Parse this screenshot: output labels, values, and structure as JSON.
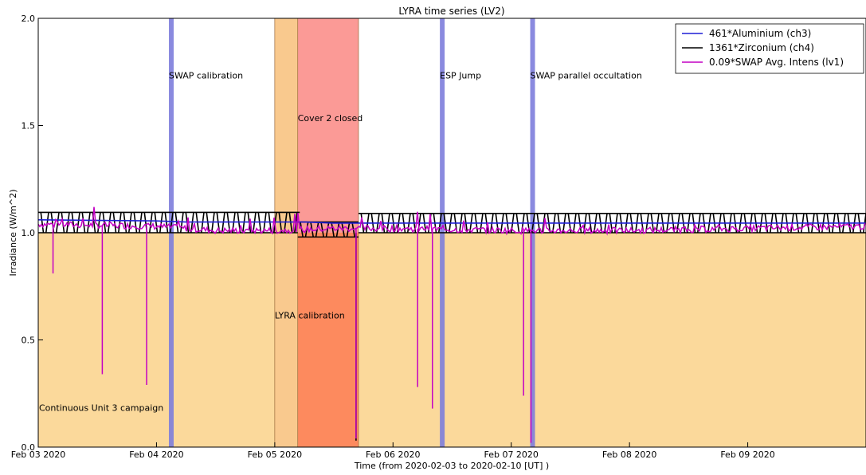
{
  "chart_data": {
    "type": "line",
    "title": "LYRA time series (LV2)",
    "xlabel": "Time (from 2020-02-03 to 2020-02-10 [UT] )",
    "ylabel": "Irradiance (W/m^2)",
    "xlim": [
      "2020-02-03",
      "2020-02-10"
    ],
    "ylim": [
      0.0,
      2.0
    ],
    "x_ticks": [
      "Feb 03 2020",
      "Feb 04 2020",
      "Feb 05 2020",
      "Feb 06 2020",
      "Feb 07 2020",
      "Feb 08 2020",
      "Feb 09 2020"
    ],
    "y_ticks": [
      "0.0",
      "0.5",
      "1.0",
      "1.5",
      "2.0"
    ],
    "grid": false,
    "legend_position": "top-right",
    "series": [
      {
        "name": "461*Aluminium (ch3)",
        "color": "#1f1fd6",
        "x": [
          "2020-02-03 00:00",
          "2020-02-04 00:00",
          "2020-02-04 06:00",
          "2020-02-05 00:00",
          "2020-02-05 06:00",
          "2020-02-05 12:00",
          "2020-02-06 00:00",
          "2020-02-07 00:00",
          "2020-02-08 00:00",
          "2020-02-09 00:00",
          "2020-02-10 00:00"
        ],
        "y": [
          1.06,
          1.055,
          1.05,
          1.05,
          1.05,
          1.045,
          1.045,
          1.045,
          1.045,
          1.045,
          1.045
        ]
      },
      {
        "name": "1361*Zirconium (ch4)",
        "color": "#000000",
        "envelope_x": [
          [
            "2020-02-03 00:00",
            "2020-02-05 04:40"
          ],
          [
            "2020-02-05 04:40",
            "2020-02-05 17:00"
          ],
          [
            "2020-02-05 17:00",
            "2020-02-10 00:00"
          ]
        ],
        "envelope_y_high": [
          1.095,
          1.05,
          1.09
        ],
        "envelope_y_low": [
          1.0,
          0.98,
          1.0
        ],
        "dropout": {
          "x": "2020-02-05 16:30",
          "y": 0.03
        }
      },
      {
        "name": "0.09*SWAP Avg. Intens (lv1)",
        "color": "#c400c4",
        "baseline_x": [
          "2020-02-03 00:00",
          "2020-02-04 00:00",
          "2020-02-04 12:00",
          "2020-02-05 00:00",
          "2020-02-05 12:00",
          "2020-02-06 00:00",
          "2020-02-07 00:00",
          "2020-02-08 00:00",
          "2020-02-09 00:00",
          "2020-02-10 00:00"
        ],
        "baseline_y": [
          1.04,
          1.03,
          1.01,
          1.01,
          1.02,
          1.02,
          1.01,
          1.01,
          1.02,
          1.03
        ],
        "dips": [
          {
            "x": "2020-02-03 03:00",
            "y": 0.81
          },
          {
            "x": "2020-02-03 13:00",
            "y": 0.34
          },
          {
            "x": "2020-02-03 22:00",
            "y": 0.29
          },
          {
            "x": "2020-02-05 16:30",
            "y": 0.04
          },
          {
            "x": "2020-02-06 05:00",
            "y": 0.28
          },
          {
            "x": "2020-02-06 08:00",
            "y": 0.18
          },
          {
            "x": "2020-02-07 02:30",
            "y": 0.24
          },
          {
            "x": "2020-02-07 04:00",
            "y": 0.02
          }
        ]
      }
    ],
    "shaded_regions": [
      {
        "label": "Continuous Unit 3 campaign",
        "x": [
          "2020-02-03 00:00",
          "2020-02-10 00:00"
        ],
        "y": [
          0.0,
          1.0
        ],
        "color": "#fbd99b"
      },
      {
        "label": "",
        "x": [
          "2020-02-05 00:00",
          "2020-02-05 04:40"
        ],
        "y": [
          0.0,
          2.0
        ],
        "color": "#f9c98e"
      },
      {
        "label": "Cover 2 closed",
        "x": [
          "2020-02-05 04:40",
          "2020-02-05 17:00"
        ],
        "y": [
          1.0,
          2.0
        ],
        "color": "#fb9a96"
      },
      {
        "label": "LYRA calibration",
        "x": [
          "2020-02-05 04:40",
          "2020-02-05 17:00"
        ],
        "y": [
          0.0,
          1.0
        ],
        "color": "#fd8a5e"
      }
    ],
    "vertical_markers": [
      {
        "label": "SWAP calibration",
        "x": "2020-02-04 03:00",
        "color": "#7d7ddc"
      },
      {
        "label": "ESP Jump",
        "x": "2020-02-06 10:00",
        "color": "#7d7ddc"
      },
      {
        "label": "SWAP parallel occultation",
        "x": "2020-02-07 04:20",
        "color": "#7d7ddc"
      }
    ]
  }
}
